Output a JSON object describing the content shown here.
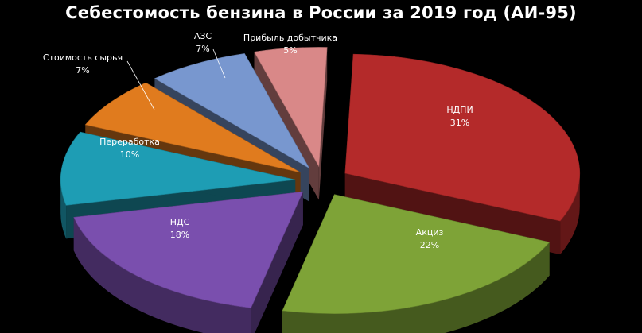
{
  "chart_data": {
    "type": "pie",
    "title": "Себестомость бензина в России за 2019 год (АИ-95)",
    "slices": [
      {
        "label": "НДПИ",
        "value_label": "31%",
        "value": 31,
        "color": "#b42a2a",
        "label_color": "#ffffff"
      },
      {
        "label": "Акциз",
        "value_label": "22%",
        "value": 22,
        "color": "#7ea337",
        "label_color": "#ffffff"
      },
      {
        "label": "НДС",
        "value_label": "18%",
        "value": 18,
        "color": "#7a4fae",
        "label_color": "#ffffff"
      },
      {
        "label": "Переработка",
        "value_label": "10%",
        "value": 10,
        "color": "#1e9db4",
        "label_color": "#ffffff"
      },
      {
        "label": "Стоимость сырья",
        "value_label": "7%",
        "value": 7,
        "color": "#e07b1e",
        "label_color": "#ffffff"
      },
      {
        "label": "АЗС",
        "value_label": "7%",
        "value": 7,
        "color": "#7897cf",
        "label_color": "#ffffff"
      },
      {
        "label": "Прибыль добытчика",
        "value_label": "5%",
        "value": 5,
        "color": "#d98888",
        "label_color": "#ffffff"
      }
    ]
  }
}
